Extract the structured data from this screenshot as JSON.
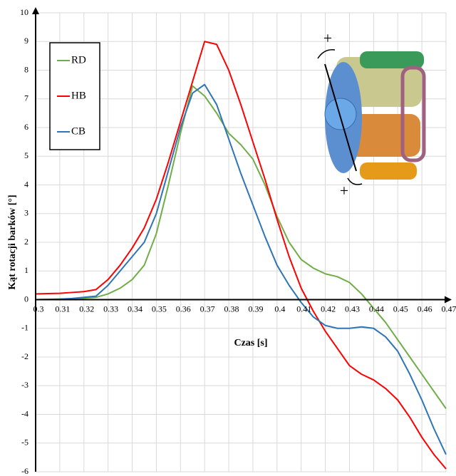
{
  "chart_data": {
    "type": "line",
    "x_label": "Czas [s]",
    "y_label": "Kąt rotacji barków [°]",
    "x": [
      0.3,
      0.305,
      0.31,
      0.315,
      0.32,
      0.325,
      0.33,
      0.335,
      0.34,
      0.345,
      0.35,
      0.355,
      0.36,
      0.365,
      0.37,
      0.375,
      0.38,
      0.385,
      0.39,
      0.395,
      0.4,
      0.405,
      0.41,
      0.415,
      0.42,
      0.425,
      0.43,
      0.435,
      0.44,
      0.445,
      0.45,
      0.455,
      0.46,
      0.465,
      0.47
    ],
    "series": [
      {
        "name": "RD",
        "color": "#70ad47",
        "values": [
          0,
          0.01,
          0.02,
          0.03,
          0.05,
          0.08,
          0.2,
          0.4,
          0.7,
          1.2,
          2.3,
          4,
          5.8,
          7.45,
          7.1,
          6.5,
          5.8,
          5.4,
          4.9,
          4.0,
          2.9,
          2.0,
          1.4,
          1.1,
          0.9,
          0.8,
          0.6,
          0.2,
          -0.3,
          -0.8,
          -1.4,
          -2.0,
          -2.6,
          -3.2,
          -3.8
        ]
      },
      {
        "name": "HB",
        "color": "#ff0000",
        "values": [
          0.2,
          0.21,
          0.22,
          0.25,
          0.28,
          0.35,
          0.7,
          1.2,
          1.8,
          2.5,
          3.5,
          4.8,
          6.2,
          7.6,
          9.0,
          8.9,
          8.0,
          6.8,
          5.5,
          4.2,
          2.8,
          1.5,
          0.4,
          -0.4,
          -1.1,
          -1.7,
          -2.3,
          -2.6,
          -2.8,
          -3.1,
          -3.5,
          -4.1,
          -4.8,
          -5.4,
          -5.9
        ]
      },
      {
        "name": "CB",
        "color": "#2e75b6",
        "values": [
          0,
          0.01,
          0.02,
          0.04,
          0.08,
          0.12,
          0.5,
          1.0,
          1.5,
          2.0,
          3.0,
          4.5,
          6.0,
          7.2,
          7.5,
          6.8,
          5.6,
          4.4,
          3.3,
          2.2,
          1.2,
          0.5,
          -0.1,
          -0.6,
          -0.9,
          -1.0,
          -1.0,
          -0.95,
          -1.0,
          -1.3,
          -1.8,
          -2.6,
          -3.5,
          -4.5,
          -5.4
        ]
      }
    ],
    "xlim": [
      0.3,
      0.47
    ],
    "xticks": [
      0.3,
      0.31,
      0.32,
      0.33,
      0.34,
      0.35,
      0.36,
      0.37,
      0.38,
      0.39,
      0.4,
      0.41,
      0.42,
      0.43,
      0.44,
      0.45,
      0.46,
      0.47
    ],
    "ylim": [
      -6,
      10
    ],
    "yticks": [
      -6,
      -5,
      -4,
      -3,
      -2,
      -1,
      0,
      1,
      2,
      3,
      4,
      5,
      6,
      7,
      8,
      9,
      10
    ],
    "grid": true,
    "legend": "upper left",
    "inset_labels": [
      "+",
      "+"
    ]
  }
}
